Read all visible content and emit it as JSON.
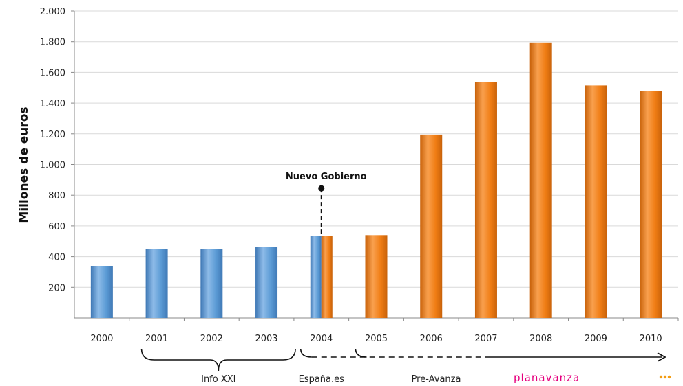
{
  "chart_data": {
    "type": "bar",
    "ylabel": "Millones de euros",
    "ylim": [
      0,
      2000
    ],
    "ytick_labels": [
      "200",
      "400",
      "600",
      "800",
      "1.000",
      "1.200",
      "1.400",
      "1.600",
      "1.800",
      "2.000"
    ],
    "yticks": [
      200,
      400,
      600,
      800,
      1000,
      1200,
      1400,
      1600,
      1800,
      2000
    ],
    "categories": [
      "2000",
      "2001",
      "2002",
      "2003",
      "2004",
      "2005",
      "2006",
      "2007",
      "2008",
      "2009",
      "2010"
    ],
    "values": [
      340,
      450,
      450,
      465,
      535,
      540,
      1195,
      1535,
      1795,
      1515,
      1480
    ],
    "colors": {
      "blue": "#5b9bd5",
      "orange": "#f07d14"
    },
    "bar_color_by_category": [
      "blue",
      "blue",
      "blue",
      "blue",
      "split",
      "orange",
      "orange",
      "orange",
      "orange",
      "orange",
      "orange"
    ],
    "annotation": {
      "text": "Nuevo Gobierno",
      "category": "2004",
      "value": 845
    },
    "phases": [
      {
        "label": "Info XXI",
        "from": "2001",
        "to": "2003"
      },
      {
        "label": "España.es",
        "from": "2004",
        "to": "2004"
      },
      {
        "label": "Pre-Avanza",
        "from": "2005",
        "to": "2010"
      }
    ],
    "logo": {
      "text": "planavanza"
    }
  }
}
